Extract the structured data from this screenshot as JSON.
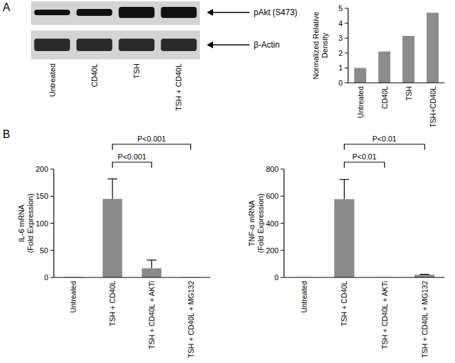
{
  "figure": {
    "panel_labels": [
      "A",
      "B"
    ]
  },
  "chart_data": [
    {
      "type": "blot",
      "categories": [
        "Untreated",
        "CD40L",
        "TSH",
        "TSH + CD40L"
      ],
      "series": [
        {
          "name": "pAkt (S473)",
          "values": [
            0.35,
            0.5,
            1,
            1
          ]
        },
        {
          "name": "β-Actin",
          "values": [
            1,
            1,
            1,
            1
          ]
        }
      ]
    },
    {
      "type": "bar",
      "categories": [
        "Untreated",
        "CD40L",
        "TSH",
        "TSH+CD40L"
      ],
      "values": [
        1,
        2.1,
        3.15,
        4.7
      ],
      "ylabel": [
        "Normalized Relative",
        "Density"
      ],
      "ylim": [
        0,
        5
      ],
      "yticks": [
        0,
        1,
        2,
        3,
        4,
        5
      ],
      "color": "#8c8c8c"
    },
    {
      "type": "bar",
      "categories": [
        "Untreated",
        "TSH + CD40L",
        "TSH + CD40L + AKTi",
        "TSH + CD40L + MG132"
      ],
      "values": [
        1,
        145,
        17,
        0.5
      ],
      "errors": [
        0,
        37,
        15,
        0
      ],
      "ylabel": [
        "IL-6 mRNA",
        "(Fold Expression)"
      ],
      "ylim": [
        0,
        200
      ],
      "yticks": [
        0,
        50,
        100,
        150,
        200
      ],
      "color": "#8c8c8c",
      "annotations": [
        {
          "text": "P<0.001",
          "from": 1,
          "to": 3
        },
        {
          "text": "P<0.001",
          "from": 1,
          "to": 2
        }
      ]
    },
    {
      "type": "bar",
      "categories": [
        "Untreated",
        "TSH + CD40L",
        "TSH + CD40L + AKTi",
        "TSH + CD40L + MG132"
      ],
      "values": [
        1,
        578,
        1,
        20
      ],
      "errors": [
        0,
        145,
        0,
        3
      ],
      "ylabel": [
        "TNF-α mRNA",
        "(Fold Expression)"
      ],
      "ylim": [
        0,
        800
      ],
      "yticks": [
        0,
        200,
        400,
        600,
        800
      ],
      "color": "#8c8c8c",
      "annotations": [
        {
          "text": "P<0.01",
          "from": 1,
          "to": 3
        },
        {
          "text": "P<0.01",
          "from": 1,
          "to": 2
        }
      ]
    }
  ]
}
